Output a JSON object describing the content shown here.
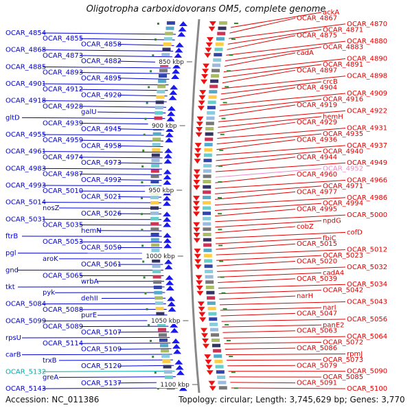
{
  "title": "Oligotropha carboxidovorans OM5, complete genome",
  "footer": {
    "accession": "Accession: NC_011386",
    "topology": "Topology: circular; Length: 3,745,629 bp; Genes: 3,770"
  },
  "colors": {
    "left_label": "#0000cc",
    "right_label": "#dd0000",
    "highlight_left": "#00aaaa",
    "highlight_right": "#ee88cc",
    "backbone": "#888888",
    "tick": "#2a8a2a"
  },
  "ticks": [
    "850 kbp",
    "900 kbp",
    "950 kbp",
    "1000 kbp",
    "1050 kbp",
    "1100 kbp"
  ],
  "left_labels": [
    "OCAR_4854",
    "OCAR_4855",
    "OCAR_4858",
    "OCAR_4868",
    "OCAR_4873",
    "OCAR_4882",
    "OCAR_4885",
    "OCAR_4893",
    "OCAR_4895",
    "OCAR_4901",
    "OCAR_4912",
    "OCAR_4920",
    "OCAR_4918",
    "OCAR_4928",
    "galU",
    "gltD",
    "OCAR_4939",
    "OCAR_4945",
    "OCAR_4955",
    "OCAR_4959",
    "OCAR_4958",
    "OCAR_4961",
    "OCAR_4974",
    "OCAR_4973",
    "OCAR_4983",
    "OCAR_4987",
    "OCAR_4992",
    "OCAR_4993",
    "OCAR_5010",
    "OCAR_5021",
    "OCAR_5014",
    "nosZ",
    "OCAR_5026",
    "OCAR_5031",
    "OCAR_5035",
    "hemN",
    "ftrB",
    "OCAR_5053",
    "OCAR_5050",
    "pgl",
    "aroK",
    "OCAR_5061",
    "gnd",
    "OCAR_5065",
    "wrbA",
    "tkt",
    "pyk",
    "dehII",
    "OCAR_5084",
    "OCAR_5088",
    "purE",
    "OCAR_5099",
    "OCAR_5089",
    "OCAR_5107",
    "rpsU",
    "OCAR_5114",
    "OCAR_5109",
    "carB",
    "trxB",
    "OCAR_5120",
    "OCAR_5132",
    "greA",
    "OCAR_5137",
    "OCAR_5143"
  ],
  "right_labels": [
    "ackA",
    "OCAR_4867",
    "OCAR_4870",
    "OCAR_4871",
    "OCAR_4875",
    "OCAR_4880",
    "OCAR_4883",
    "cadA",
    "OCAR_4890",
    "OCAR_4891",
    "OCAR_4897",
    "OCAR_4898",
    "crcB",
    "OCAR_4904",
    "OCAR_4909",
    "OCAR_4916",
    "OCAR_4919",
    "OCAR_4922",
    "hemH",
    "OCAR_4929",
    "OCAR_4931",
    "OCAR_4935",
    "OCAR_4936",
    "OCAR_4937",
    "OCAR_4940",
    "OCAR_4944",
    "OCAR_4949",
    "OCAR_4952",
    "OCAR_4960",
    "OCAR_4966",
    "OCAR_4971",
    "OCAR_4977",
    "OCAR_4986",
    "OCAR_4994",
    "OCAR_4995",
    "OCAR_5000",
    "npdG",
    "cobZ",
    "cofD",
    "fbiC",
    "OCAR_5015",
    "OCAR_5012",
    "OCAR_5023",
    "OCAR_5020",
    "OCAR_5032",
    "cadA4",
    "OCAR_5039",
    "OCAR_5034",
    "OCAR_5042",
    "narH",
    "OCAR_5043",
    "narI",
    "OCAR_5047",
    "OCAR_5056",
    "panE2",
    "OCAR_5063",
    "OCAR_5064",
    "OCAR_5072",
    "OCAR_5086",
    "rpmJ",
    "OCAR_5073",
    "OCAR_5079",
    "OCAR_5090",
    "OCAR_5085",
    "OCAR_5091",
    "OCAR_5100"
  ]
}
